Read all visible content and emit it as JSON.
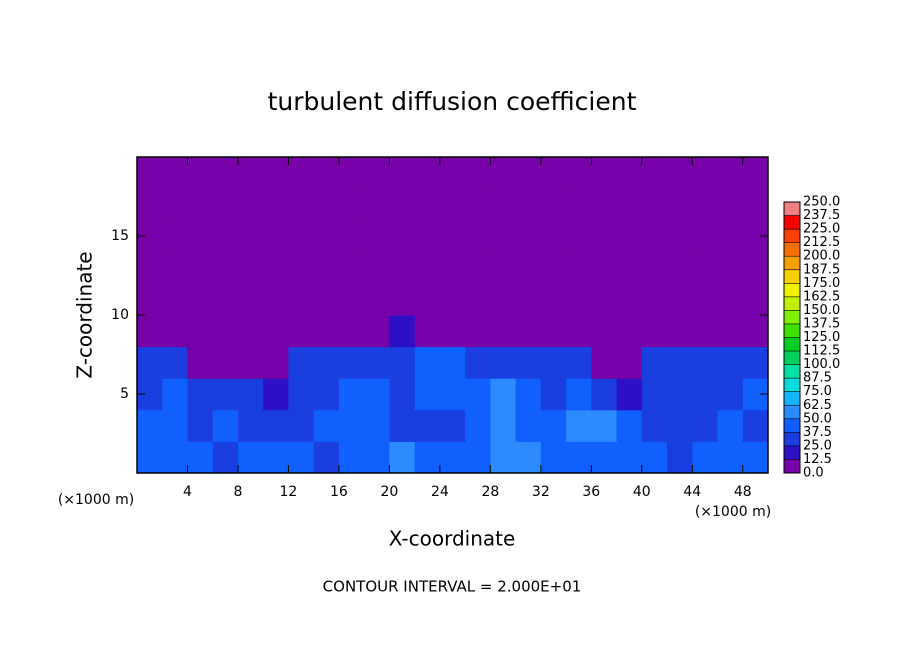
{
  "chart_data": {
    "type": "heatmap",
    "title": "turbulent diffusion coefficient",
    "xlabel": "X-coordinate",
    "ylabel": "Z-coordinate",
    "x_unit": "(×1000 m)",
    "note": "CONTOUR INTERVAL = 2.000E+01",
    "xlim": [
      0,
      50
    ],
    "xticks": [
      4,
      8,
      12,
      16,
      20,
      24,
      28,
      32,
      36,
      40,
      44,
      48
    ],
    "ylim": [
      0,
      20
    ],
    "yticks": [
      5,
      10,
      15
    ],
    "x": [
      1,
      3,
      5,
      7,
      9,
      11,
      13,
      15,
      17,
      19,
      21,
      23,
      25,
      27,
      29,
      31,
      33,
      35,
      37,
      39,
      41,
      43,
      45,
      47,
      49
    ],
    "y": [
      1,
      3,
      5,
      7,
      9,
      11,
      13,
      15,
      17,
      19
    ],
    "z": [
      [
        40,
        45,
        40,
        35,
        40,
        45,
        40,
        35,
        40,
        45,
        50,
        45,
        40,
        45,
        50,
        55,
        45,
        40,
        40,
        45,
        40,
        35,
        40,
        45,
        40
      ],
      [
        45,
        40,
        30,
        40,
        35,
        30,
        35,
        40,
        45,
        40,
        35,
        30,
        35,
        45,
        50,
        45,
        40,
        55,
        50,
        40,
        35,
        30,
        35,
        40,
        35
      ],
      [
        35,
        40,
        30,
        25,
        30,
        20,
        30,
        35,
        40,
        45,
        30,
        45,
        40,
        45,
        50,
        40,
        35,
        45,
        25,
        20,
        35,
        30,
        35,
        30,
        40
      ],
      [
        30,
        25,
        10,
        10,
        10,
        10,
        25,
        30,
        30,
        30,
        35,
        40,
        40,
        35,
        30,
        30,
        35,
        30,
        5,
        5,
        30,
        35,
        30,
        30,
        30
      ],
      [
        0,
        0,
        0,
        0,
        0,
        0,
        0,
        5,
        5,
        10,
        15,
        5,
        5,
        0,
        0,
        0,
        0,
        0,
        0,
        0,
        0,
        0,
        0,
        0,
        0
      ],
      [
        0,
        0,
        0,
        0,
        0,
        0,
        0,
        0,
        0,
        0,
        0,
        0,
        0,
        0,
        0,
        0,
        0,
        0,
        0,
        0,
        0,
        0,
        0,
        0,
        0
      ],
      [
        0,
        0,
        0,
        0,
        0,
        0,
        0,
        0,
        0,
        0,
        0,
        0,
        0,
        0,
        0,
        0,
        0,
        0,
        0,
        0,
        0,
        0,
        0,
        0,
        0
      ],
      [
        0,
        0,
        0,
        0,
        0,
        0,
        0,
        0,
        0,
        0,
        0,
        0,
        0,
        0,
        0,
        0,
        0,
        0,
        0,
        0,
        0,
        0,
        0,
        0,
        0
      ],
      [
        0,
        0,
        0,
        0,
        0,
        0,
        0,
        0,
        0,
        0,
        0,
        0,
        0,
        0,
        0,
        0,
        0,
        0,
        0,
        0,
        0,
        0,
        0,
        0,
        0
      ],
      [
        0,
        0,
        0,
        0,
        0,
        0,
        0,
        0,
        0,
        0,
        0,
        0,
        0,
        0,
        0,
        0,
        0,
        0,
        0,
        0,
        0,
        0,
        0,
        0,
        0
      ]
    ],
    "colorbar_ticks": [
      {
        "value": 0,
        "label": "0.0"
      },
      {
        "value": 12.5,
        "label": "12.5"
      },
      {
        "value": 25,
        "label": "25.0"
      },
      {
        "value": 37.5,
        "label": "37.5"
      },
      {
        "value": 50,
        "label": "50.0"
      },
      {
        "value": 62.5,
        "label": "62.5"
      },
      {
        "value": 75,
        "label": "75.0"
      },
      {
        "value": 87.5,
        "label": "87.5"
      },
      {
        "value": 100,
        "label": "100.0"
      },
      {
        "value": 112.5,
        "label": "112.5"
      },
      {
        "value": 125,
        "label": "125.0"
      },
      {
        "value": 137.5,
        "label": "137.5"
      },
      {
        "value": 150,
        "label": "150.0"
      },
      {
        "value": 162.5,
        "label": "162.5"
      },
      {
        "value": 175,
        "label": "175.0"
      },
      {
        "value": 187.5,
        "label": "187.5"
      },
      {
        "value": 200,
        "label": "200.0"
      },
      {
        "value": 212.5,
        "label": "212.5"
      },
      {
        "value": 225,
        "label": "225.0"
      },
      {
        "value": 237.5,
        "label": "237.5"
      },
      {
        "value": 250,
        "label": "250.0"
      }
    ],
    "colors": [
      "#7800a8",
      "#2c10c8",
      "#1a3ee0",
      "#1060ff",
      "#2a8cff",
      "#10b4ff",
      "#00dcdc",
      "#00e0a0",
      "#00d060",
      "#00d020",
      "#40e000",
      "#80f000",
      "#c0f000",
      "#f0f000",
      "#f8d000",
      "#f8a000",
      "#f87000",
      "#f84000",
      "#f80000",
      "#f08080"
    ]
  }
}
